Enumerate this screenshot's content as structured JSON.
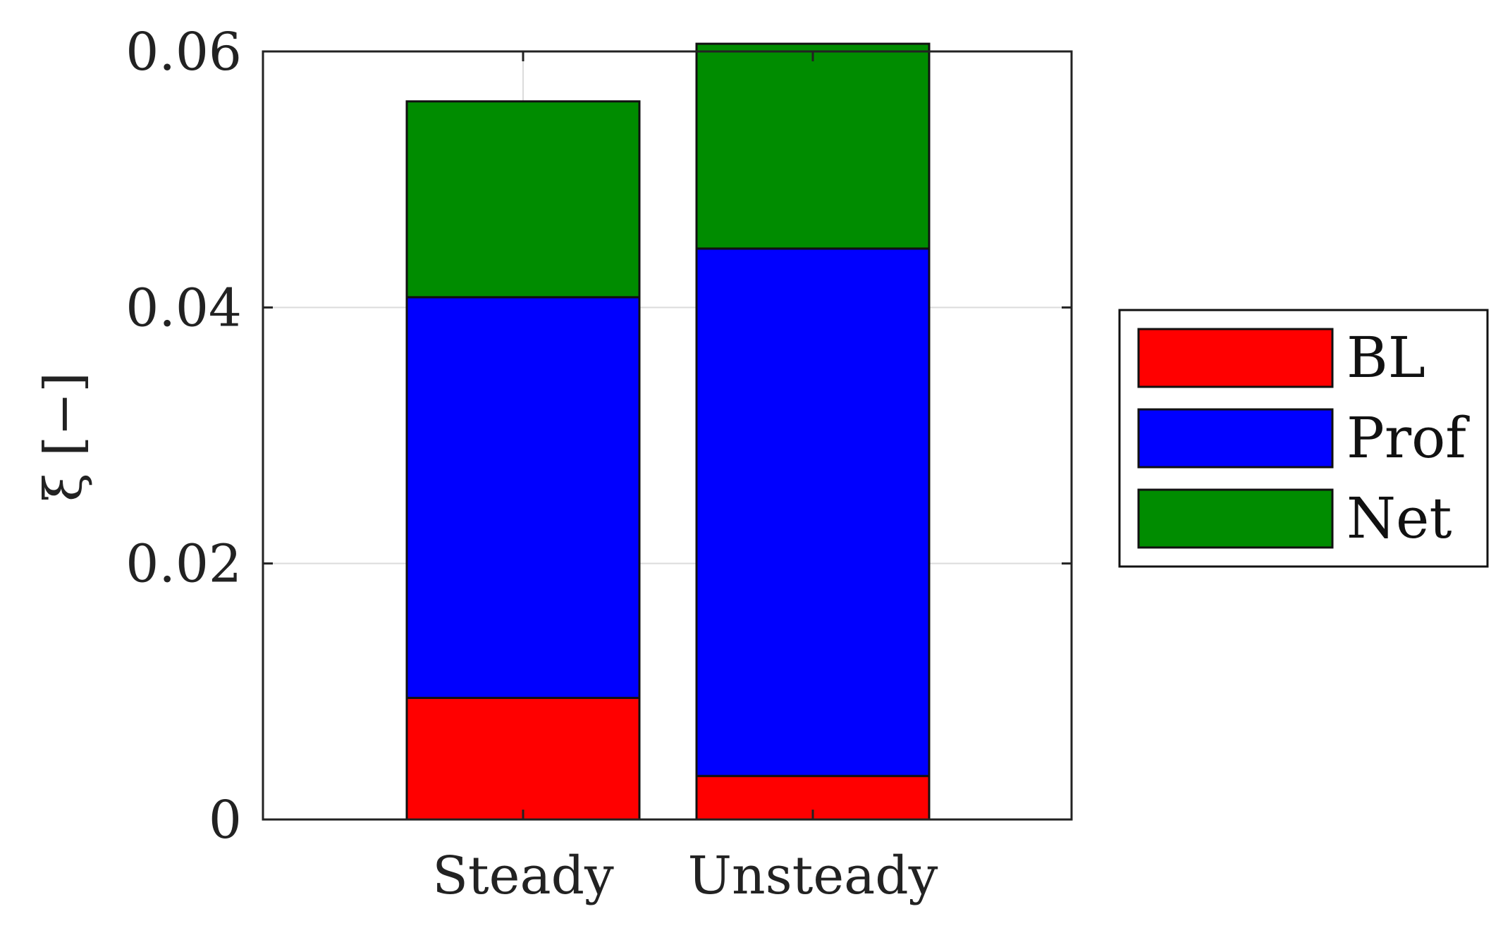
{
  "chart_data": {
    "type": "bar",
    "stacked": true,
    "categories": [
      "Steady",
      "Unsteady"
    ],
    "series": [
      {
        "name": "BL",
        "color": "#ff0000",
        "values": [
          0.0095,
          0.0034
        ]
      },
      {
        "name": "Prof",
        "color": "#0000ff",
        "values": [
          0.0313,
          0.0412
        ]
      },
      {
        "name": "Net",
        "color": "#008c00",
        "values": [
          0.0153,
          0.016
        ]
      }
    ],
    "ylim": [
      0,
      0.06
    ],
    "yticks": [
      0,
      0.02,
      0.04,
      0.06
    ],
    "ytick_labels": [
      "0",
      "0.02",
      "0.04",
      "0.06"
    ],
    "ylabel": "ξ [−]",
    "xlabel": "",
    "grid": true,
    "legend_position": "right"
  }
}
